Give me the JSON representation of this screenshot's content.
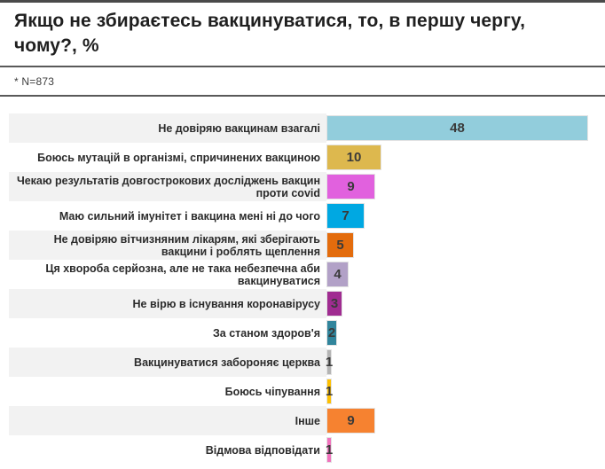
{
  "title": "Якщо не збираєтесь вакцинуватися, то, в першу чергу, чому?, %",
  "note": "* N=873",
  "chart_data": {
    "type": "bar",
    "orientation": "horizontal",
    "title": "Якщо не збираєтесь вакцинуватися, то, в першу чергу, чому?, %",
    "subtitle": "* N=873",
    "xlim": [
      0,
      48
    ],
    "grid": false,
    "legend": "none",
    "value_labels": "inside-center",
    "categories": [
      "Не довіряю вакцинам взагалі",
      "Боюсь мутацій в організмі, спричинених вакциною",
      "Чекаю результатів довгострокових досліджень вакцин проти covid",
      "Маю сильний імунітет і вакцина мені ні до чого",
      "Не довіряю вітчизняним лікарям, які зберігають вакцини і роблять щеплення",
      "Ця хвороба серйозна, але не така небезпечна аби вакцинуватися",
      "Не вірю в існування коронавірусу",
      "За станом здоров'я",
      "Вакцинуватися забороняє церква",
      "Боюсь чіпування",
      "Інше",
      "Відмова відповідати"
    ],
    "values": [
      48,
      10,
      9,
      7,
      5,
      4,
      3,
      2,
      1,
      1,
      9,
      1
    ],
    "bar_colors": [
      "#92cddc",
      "#ddb84e",
      "#e161de",
      "#00a8e2",
      "#e36c0d",
      "#b2a1c7",
      "#a02c91",
      "#31859c",
      "#b4b4b4",
      "#fec002",
      "#f68230",
      "#f172bd"
    ],
    "stripe_color": "#f2f2f2",
    "value_label_color": "#3a3a3a"
  }
}
